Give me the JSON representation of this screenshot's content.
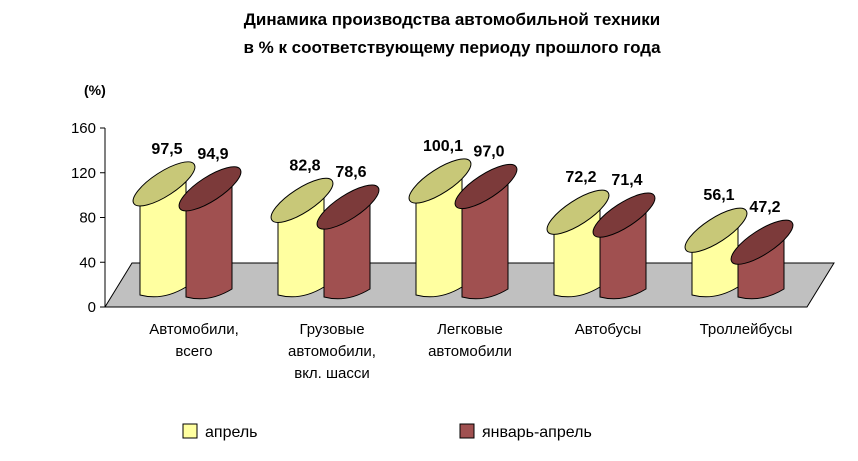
{
  "chart_data": {
    "type": "bar",
    "title_lines": [
      "Динамика производства автомобильной техники",
      "в % к соответствующему периоду прошлого года"
    ],
    "unit_label": "(%)",
    "categories": [
      [
        "Автомобили,",
        "всего"
      ],
      [
        "Грузовые",
        "автомобили,",
        "вкл. шасси"
      ],
      [
        "Легковые",
        "автомобили"
      ],
      [
        "Автобусы"
      ],
      [
        "Троллейбусы"
      ]
    ],
    "series": [
      {
        "name": "апрель",
        "color": "#ffffa0",
        "top_color": "#c8c878",
        "values": [
          97.5,
          82.8,
          100.1,
          72.2,
          56.1
        ],
        "labels": [
          "97,5",
          "82,8",
          "100,1",
          "72,2",
          "56,1"
        ]
      },
      {
        "name": "январь-апрель",
        "color": "#a05050",
        "top_color": "#7c3a3a",
        "values": [
          94.9,
          78.6,
          97.0,
          71.4,
          47.2
        ],
        "labels": [
          "94,9",
          "78,6",
          "97,0",
          "71,4",
          "47,2"
        ]
      }
    ],
    "ylim": [
      0,
      160
    ],
    "yticks": [
      0,
      40,
      80,
      120,
      160
    ],
    "ytick_labels": [
      "0",
      "40",
      "80",
      "120",
      "160"
    ],
    "grid": false,
    "floor_color": "#c0c0c0",
    "legend_position": "bottom",
    "shape": "3d-cylinder"
  }
}
